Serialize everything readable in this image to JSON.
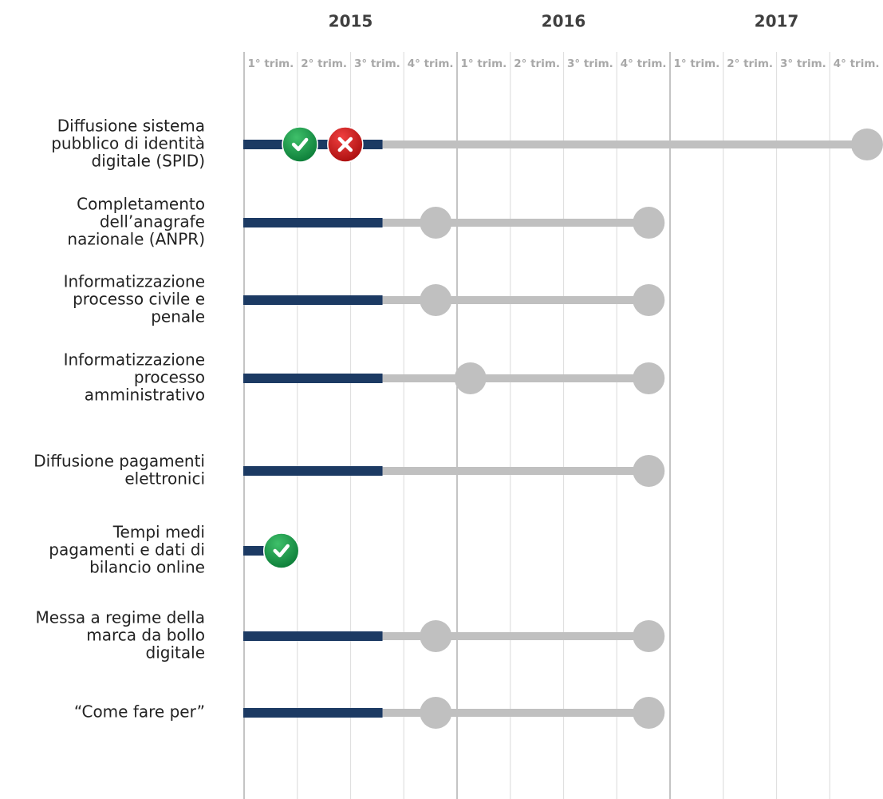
{
  "chart_data": {
    "type": "timeline",
    "years": [
      "2015",
      "2016",
      "2017"
    ],
    "xlim": [
      0,
      12
    ],
    "xticks": [
      {
        "value": 0,
        "label": "1° trim."
      },
      {
        "value": 1,
        "label": "2° trim."
      },
      {
        "value": 2,
        "label": "3° trim."
      },
      {
        "value": 3,
        "label": "4° trim."
      },
      {
        "value": 4,
        "label": "1° trim."
      },
      {
        "value": 5,
        "label": "2° trim."
      },
      {
        "value": 6,
        "label": "3° trim."
      },
      {
        "value": 7,
        "label": "4° trim."
      },
      {
        "value": 8,
        "label": "1° trim."
      },
      {
        "value": 9,
        "label": "2° trim."
      },
      {
        "value": 10,
        "label": "3° trim."
      },
      {
        "value": 11,
        "label": "4° trim."
      }
    ],
    "progress_color": "#1c3a63",
    "plan_color": "#c0c0c0",
    "rows": [
      {
        "label": [
          "Diffusione sistema",
          "pubblico di identità",
          "digitale (SPID)"
        ],
        "progress": 2.6,
        "milestones": [
          11.7
        ],
        "done": [
          1.05
        ],
        "missed": [
          1.9
        ]
      },
      {
        "label": [
          "Completamento",
          "dell’anagrafe",
          "nazionale (ANPR)"
        ],
        "progress": 2.6,
        "milestones": [
          3.6,
          7.6
        ],
        "done": [],
        "missed": []
      },
      {
        "label": [
          "Informatizzazione",
          "processo civile e",
          "penale"
        ],
        "progress": 2.6,
        "milestones": [
          3.6,
          7.6
        ],
        "done": [],
        "missed": []
      },
      {
        "label": [
          "Informatizzazione",
          "processo",
          "amministrativo"
        ],
        "progress": 2.6,
        "milestones": [
          4.25,
          7.6
        ],
        "done": [],
        "missed": []
      },
      {
        "label": [
          "Diffusione pagamenti",
          "elettronici"
        ],
        "progress": 2.6,
        "milestones": [
          7.6
        ],
        "done": [],
        "missed": []
      },
      {
        "label": [
          "Tempi medi",
          "pagamenti e dati di",
          "bilancio online"
        ],
        "progress": 0.7,
        "milestones": [],
        "done": [
          0.7
        ],
        "missed": []
      },
      {
        "label": [
          "Messa a regime della",
          "marca da bollo",
          "digitale"
        ],
        "progress": 2.6,
        "milestones": [
          3.6,
          7.6
        ],
        "done": [],
        "missed": []
      },
      {
        "label": [
          "“Come fare per”"
        ],
        "progress": 2.6,
        "milestones": [
          3.6,
          7.6
        ],
        "done": [],
        "missed": []
      }
    ]
  }
}
